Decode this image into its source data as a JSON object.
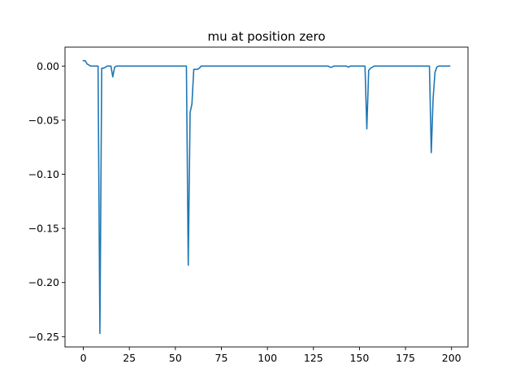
{
  "chart_data": {
    "type": "line",
    "title": "mu at position zero",
    "xlabel": "",
    "ylabel": "",
    "xlim": [
      -9.95,
      208.95
    ],
    "ylim": [
      -0.2595,
      0.0175
    ],
    "grid": false,
    "x_ticks": [
      0,
      25,
      50,
      75,
      100,
      125,
      150,
      175,
      200
    ],
    "x_tick_labels": [
      "0",
      "25",
      "50",
      "75",
      "100",
      "125",
      "150",
      "175",
      "200"
    ],
    "y_ticks": [
      0.0,
      -0.05,
      -0.1,
      -0.15,
      -0.2,
      -0.25
    ],
    "y_tick_labels": [
      "0.00",
      "−0.05",
      "−0.10",
      "−0.15",
      "−0.20",
      "−0.25"
    ],
    "series": [
      {
        "name": "mu",
        "color": "#1f77b4",
        "x": [
          0,
          1,
          2,
          3,
          4,
          5,
          6,
          7,
          8,
          9,
          10,
          11,
          12,
          13,
          14,
          15,
          16,
          17,
          18,
          20,
          25,
          50,
          55,
          56,
          57,
          58,
          59,
          60,
          61,
          62,
          63,
          64,
          65,
          66,
          70,
          100,
          115,
          120,
          130,
          133,
          134,
          135,
          136,
          140,
          143,
          144,
          145,
          150,
          152,
          153,
          154,
          155,
          156,
          157,
          158,
          160,
          170,
          180,
          187,
          188,
          189,
          190,
          191,
          192,
          193,
          195,
          199
        ],
        "values": [
          0.005,
          0.005,
          0.002,
          0.001,
          0.0,
          0.0,
          0.0,
          0.0,
          0.0,
          -0.247,
          -0.002,
          -0.002,
          -0.001,
          0.0,
          0.0,
          0.0,
          -0.01,
          -0.001,
          0.0,
          0.0,
          0.0,
          0.0,
          0.0,
          0.0,
          -0.184,
          -0.043,
          -0.035,
          -0.003,
          -0.003,
          -0.003,
          -0.002,
          0.0,
          0.0,
          0.0,
          0.0,
          0.0,
          0.0,
          0.0,
          0.0,
          0.0,
          -0.001,
          -0.001,
          0.0,
          0.0,
          0.0,
          -0.001,
          0.0,
          0.0,
          0.0,
          0.0,
          -0.058,
          -0.004,
          -0.002,
          -0.001,
          0.0,
          0.0,
          0.0,
          0.0,
          0.0,
          0.0,
          -0.08,
          -0.03,
          -0.006,
          -0.001,
          0.0,
          0.0,
          0.0
        ]
      }
    ]
  }
}
